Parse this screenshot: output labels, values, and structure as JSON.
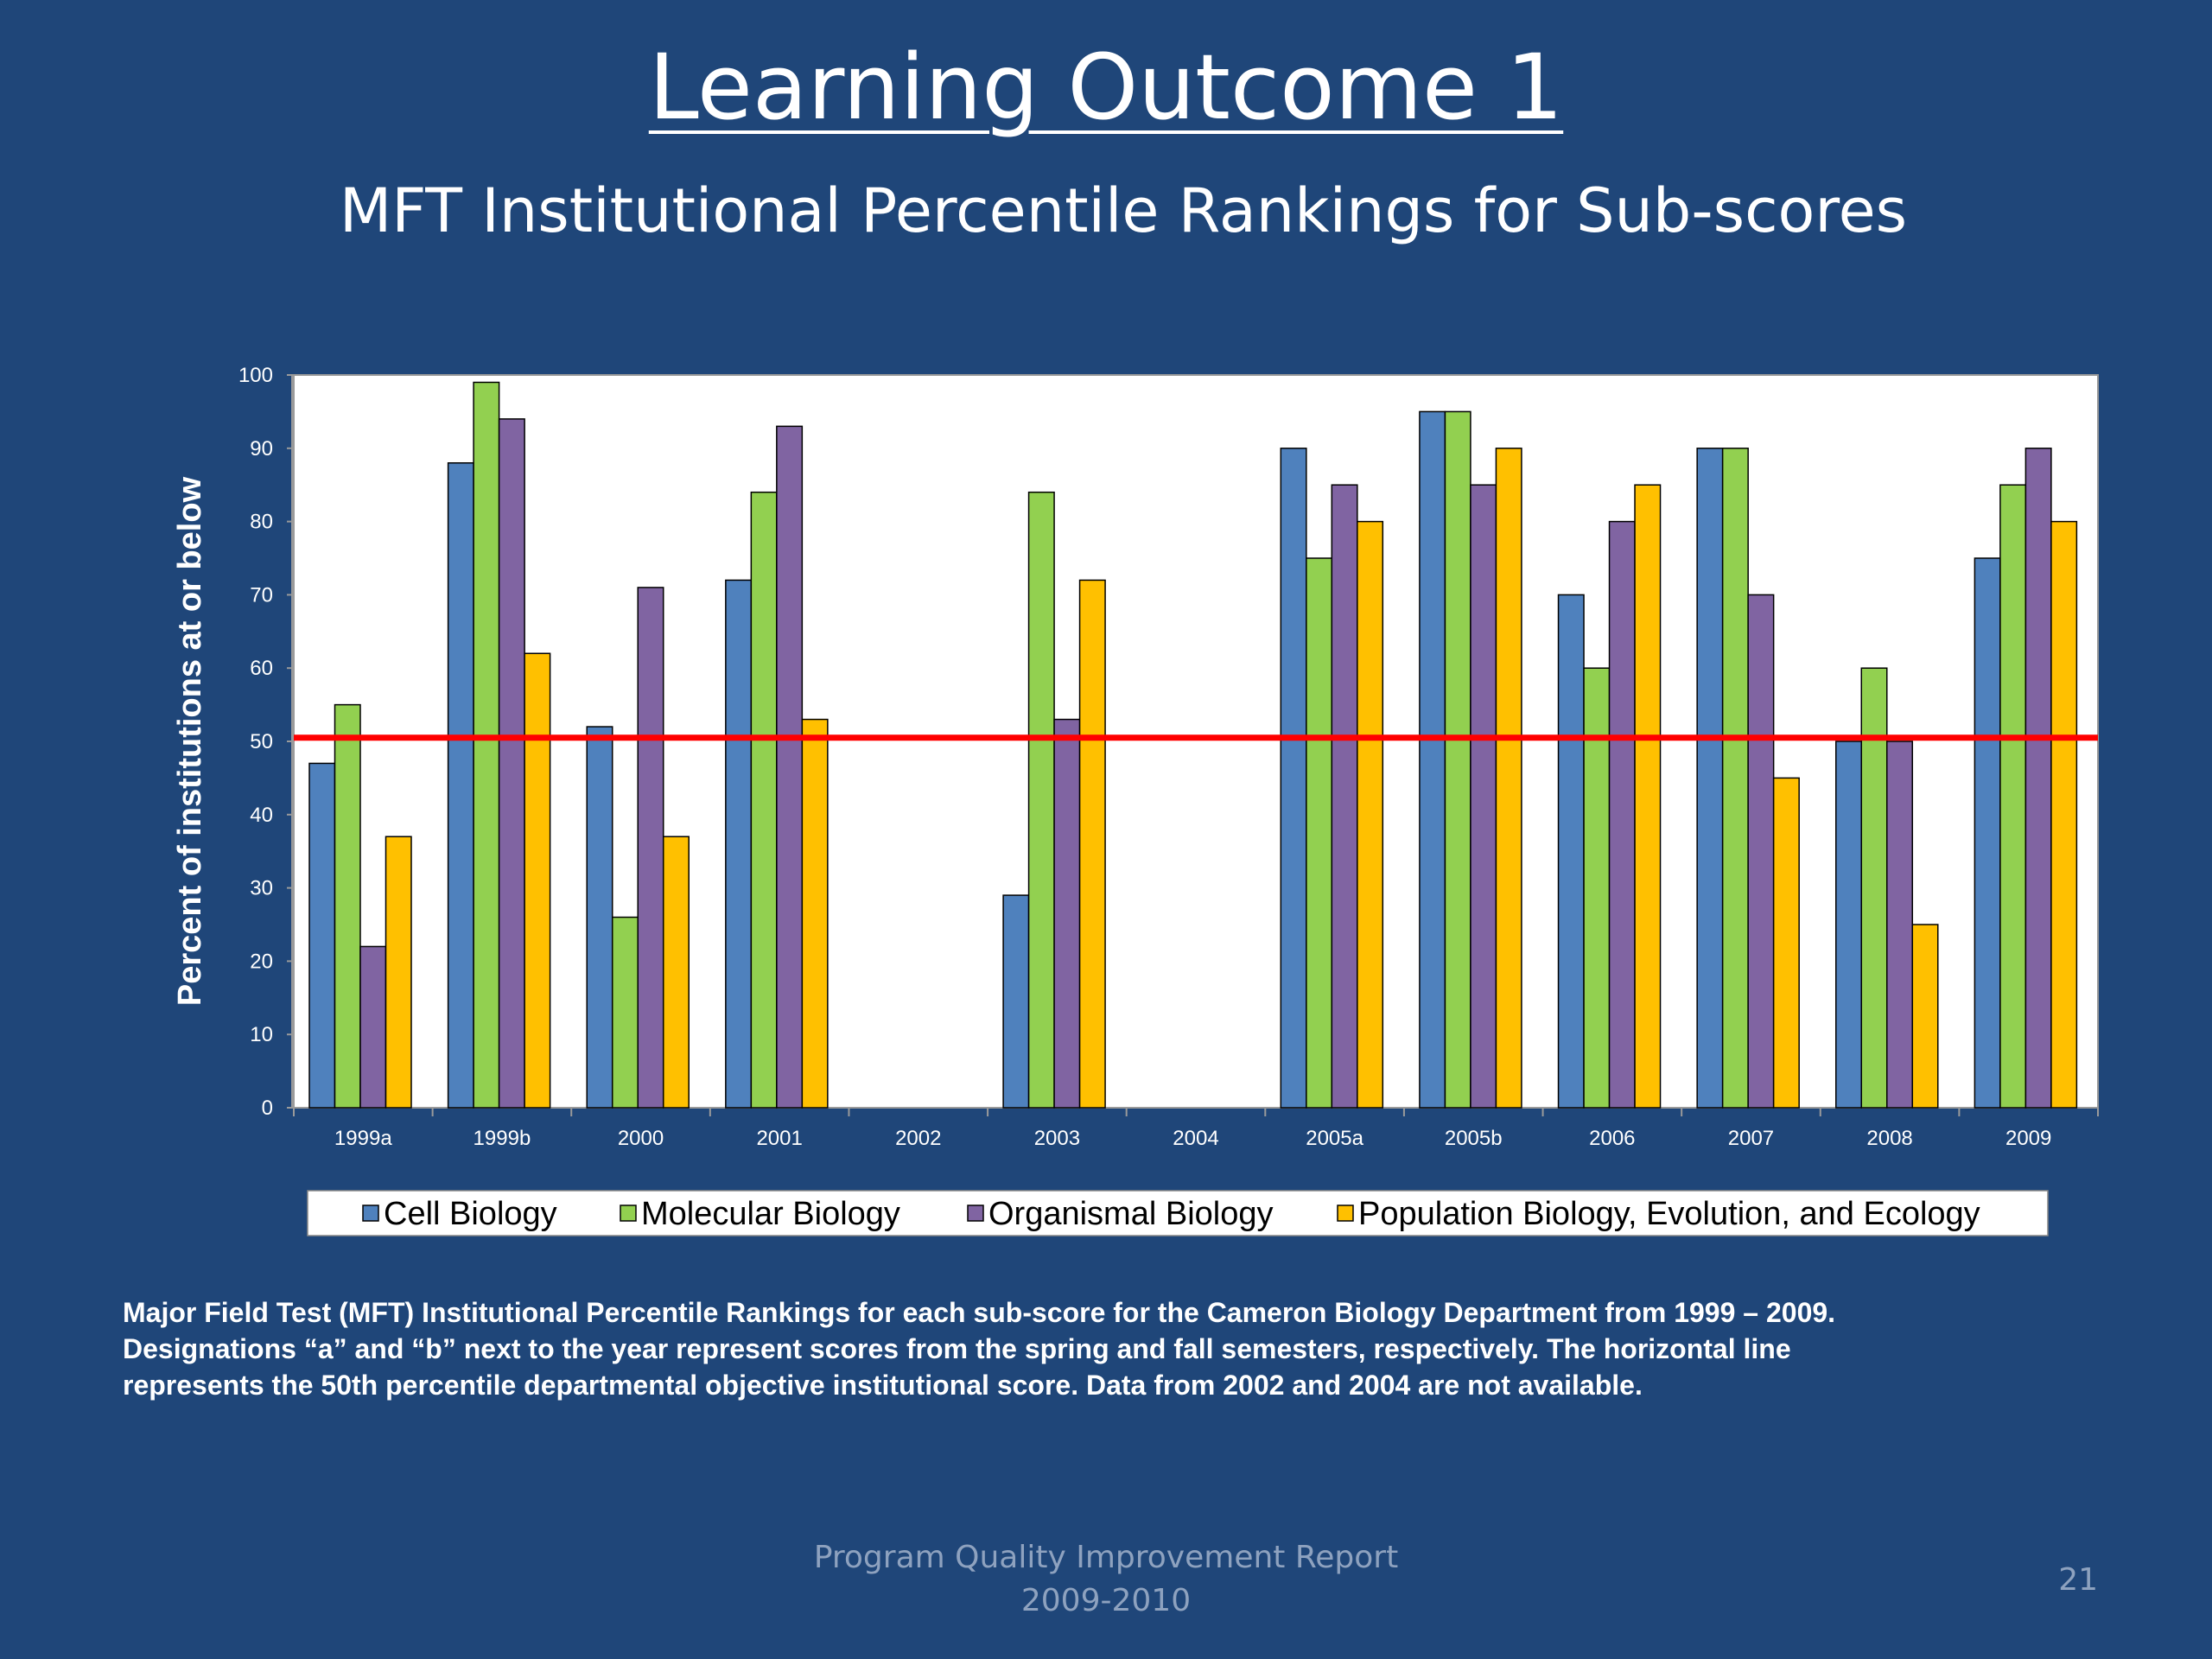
{
  "slide": {
    "title": "Learning Outcome 1",
    "subtitle": "MFT Institutional Percentile Rankings for Sub-scores"
  },
  "chart_data": {
    "type": "bar",
    "title": "",
    "xlabel": "",
    "ylabel": "Percent of institutions at or below",
    "ylim": [
      0,
      100
    ],
    "yticks": [
      0,
      10,
      20,
      30,
      40,
      50,
      60,
      70,
      80,
      90,
      100
    ],
    "grid": false,
    "legend_position": "bottom",
    "categories": [
      "1999a",
      "1999b",
      "2000",
      "2001",
      "2002",
      "2003",
      "2004",
      "2005a",
      "2005b",
      "2006",
      "2007",
      "2008",
      "2009"
    ],
    "series": [
      {
        "name": "Cell Biology",
        "color": "#4f81bd",
        "values": [
          47,
          88,
          52,
          72,
          null,
          29,
          null,
          90,
          95,
          70,
          90,
          50,
          75
        ]
      },
      {
        "name": "Molecular Biology",
        "color": "#92d050",
        "values": [
          55,
          99,
          26,
          84,
          null,
          84,
          null,
          75,
          95,
          60,
          90,
          60,
          85
        ]
      },
      {
        "name": "Organismal Biology",
        "color": "#8064a2",
        "values": [
          22,
          94,
          71,
          93,
          null,
          53,
          null,
          85,
          85,
          80,
          70,
          50,
          90
        ]
      },
      {
        "name": "Population Biology, Evolution, and Ecology",
        "color": "#ffc000",
        "values": [
          37,
          62,
          37,
          53,
          null,
          72,
          null,
          80,
          90,
          85,
          45,
          25,
          80
        ]
      }
    ],
    "reference_line": {
      "value": 50.5,
      "color": "#ff0000",
      "description": "50th percentile departmental objective"
    }
  },
  "caption": {
    "line1": "Major Field Test (MFT) Institutional Percentile Rankings for each sub-score for the Cameron Biology Department from 1999 – 2009.",
    "line2": "Designations “a” and “b” next to the year represent scores from the spring and fall semesters, respectively.  The horizontal line",
    "line3": "represents the 50th percentile departmental objective institutional score.  Data from 2002 and 2004 are not available."
  },
  "footer": {
    "report_name": "Program Quality Improvement Report",
    "report_years": "2009-2010",
    "page_number": "21"
  }
}
